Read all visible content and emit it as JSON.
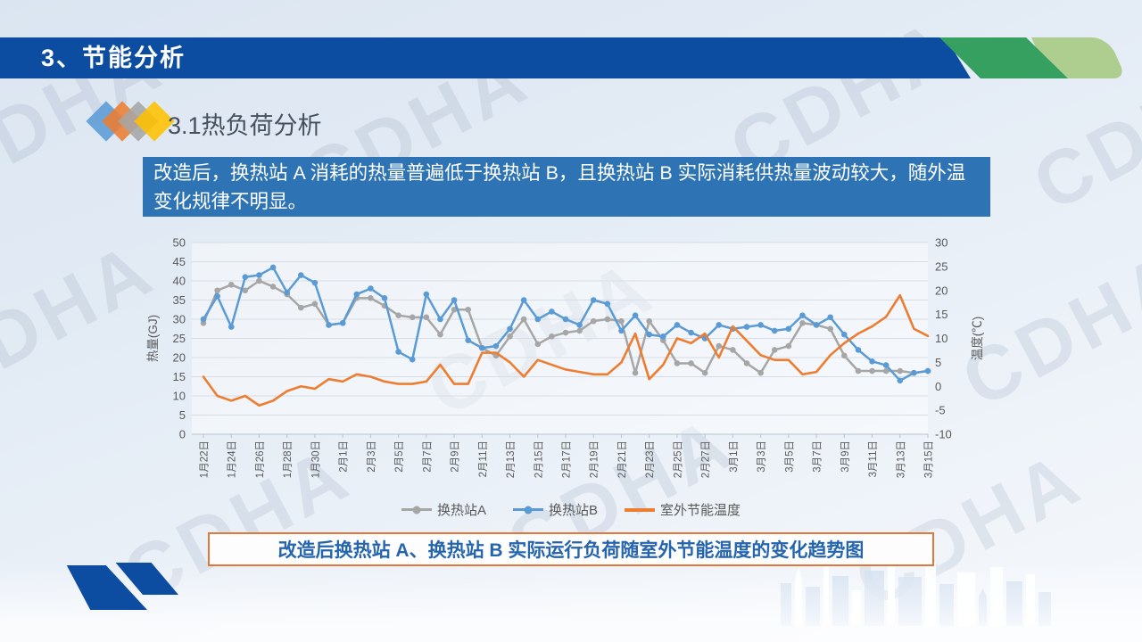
{
  "slide": {
    "title": "3、节能分析",
    "section_title": "3.1热负荷分析",
    "highlight_text": "改造后，换热站 A 消耗的热量普遍低于换热站 B，且换热站 B 实际消耗供热量波动较大，随外温变化规律不明显。",
    "caption": "改造后换热站 A、换热站 B 实际运行负荷随室外节能温度的变化趋势图",
    "watermark_text": "CDHA"
  },
  "colors": {
    "header_blue": "#0C4DA2",
    "accent_green_dark": "#35A060",
    "accent_green_light": "#AECE90",
    "highlight_bg": "#2E74B5",
    "caption_border": "#E0783C",
    "caption_text": "#2565AE",
    "series_a_gray": "#A6A6A6",
    "series_b_blue": "#5B9BD5",
    "series_temp_orange": "#ED7D31",
    "diamond_blue": "#5B9BD5",
    "diamond_orange": "#ED7D31",
    "diamond_gray": "#A5A5A5",
    "diamond_yellow": "#FFC000"
  },
  "chart_data": {
    "type": "line",
    "x_tick_labels": [
      "1月22日",
      "1月24日",
      "1月26日",
      "1月28日",
      "1月30日",
      "2月1日",
      "2月3日",
      "2月5日",
      "2月7日",
      "2月9日",
      "2月11日",
      "2月13日",
      "2月15日",
      "2月17日",
      "2月19日",
      "2月21日",
      "2月23日",
      "2月25日",
      "2月27日",
      "3月1日",
      "3月3日",
      "3月5日",
      "3月7日",
      "3月9日",
      "3月11日",
      "3月13日",
      "3月15日"
    ],
    "left_axis": {
      "title": "热量(GJ)",
      "min": 0,
      "max": 50,
      "step": 5
    },
    "right_axis": {
      "title": "温度(℃)",
      "min": -10,
      "max": 30,
      "step": 5
    },
    "grid": true,
    "legend_position": "bottom",
    "series": [
      {
        "name": "换热站A",
        "axis": "left",
        "color": "#A6A6A6",
        "marker": "circle",
        "values": [
          29,
          37.5,
          39,
          37.5,
          40,
          38.5,
          36.5,
          33,
          34,
          28.5,
          29,
          35.5,
          35.5,
          33.5,
          31,
          30.5,
          30.5,
          26,
          32.5,
          32.5,
          22.5,
          20.5,
          25.5,
          30,
          23.5,
          25.5,
          26.5,
          27,
          29.5,
          30,
          29.5,
          16,
          29.5,
          24.5,
          18.5,
          18.5,
          16,
          23,
          22,
          18.5,
          16,
          22,
          23,
          29,
          28.5,
          27.5,
          20.5,
          16.5,
          16.5,
          16.5,
          16.5,
          16,
          16.5
        ]
      },
      {
        "name": "换热站B",
        "axis": "left",
        "color": "#5B9BD5",
        "marker": "circle",
        "values": [
          30,
          36,
          28,
          41,
          41.5,
          43.5,
          37,
          41.5,
          39.5,
          28.5,
          29,
          36.5,
          38,
          35.5,
          21.5,
          19.5,
          36.5,
          30,
          35,
          24.5,
          22.5,
          23,
          27.5,
          35,
          30,
          32,
          30,
          28.5,
          35,
          34,
          27,
          31,
          26,
          25.5,
          28.5,
          26.5,
          25,
          28.5,
          27.5,
          28,
          28.5,
          27,
          27.5,
          31,
          28.5,
          30.5,
          26,
          22,
          19,
          18,
          14,
          16,
          16.5
        ]
      },
      {
        "name": "室外节能温度",
        "axis": "right",
        "color": "#ED7D31",
        "marker": "none",
        "values": [
          2,
          -2,
          -3,
          -2,
          -4,
          -3,
          -1,
          0,
          -0.5,
          1.5,
          1,
          2.5,
          2,
          1,
          0.5,
          0.5,
          1,
          4.5,
          0.5,
          0.5,
          7,
          7,
          5,
          2,
          5.5,
          4.5,
          3.5,
          3,
          2.5,
          2.5,
          5,
          11,
          1.5,
          4.5,
          10,
          9,
          11,
          6,
          12.5,
          9.5,
          6.5,
          5.5,
          5.5,
          2.5,
          3,
          6.5,
          9,
          11,
          12.5,
          14.5,
          19,
          12,
          10.5
        ]
      }
    ]
  }
}
